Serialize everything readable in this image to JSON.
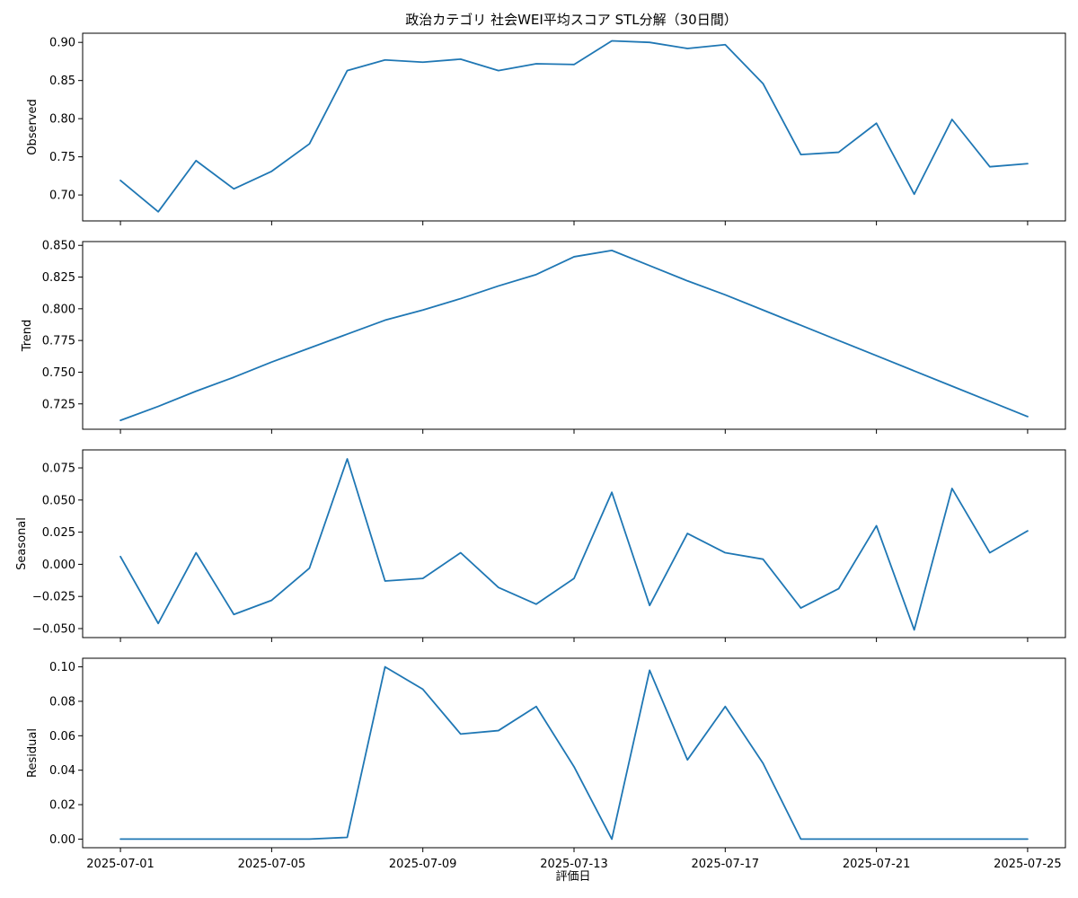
{
  "figure": {
    "title": "政治カテゴリ 社会WEI平均スコア STL分解（30日間）",
    "xlabel": "評価日"
  },
  "colors": {
    "line": "#1f77b4"
  },
  "chart_data": [
    {
      "type": "line",
      "name": "observed",
      "ylabel": "Observed",
      "x": [
        "2025-07-01",
        "2025-07-02",
        "2025-07-03",
        "2025-07-04",
        "2025-07-05",
        "2025-07-06",
        "2025-07-07",
        "2025-07-08",
        "2025-07-09",
        "2025-07-10",
        "2025-07-11",
        "2025-07-12",
        "2025-07-13",
        "2025-07-14",
        "2025-07-15",
        "2025-07-16",
        "2025-07-17",
        "2025-07-18",
        "2025-07-19",
        "2025-07-20",
        "2025-07-21",
        "2025-07-22",
        "2025-07-23",
        "2025-07-24",
        "2025-07-25"
      ],
      "values": [
        0.719,
        0.678,
        0.745,
        0.708,
        0.731,
        0.767,
        0.863,
        0.877,
        0.874,
        0.878,
        0.863,
        0.872,
        0.871,
        0.902,
        0.9,
        0.892,
        0.897,
        0.846,
        0.753,
        0.756,
        0.794,
        0.701,
        0.799,
        0.737,
        0.741
      ],
      "ylim": [
        0.666,
        0.912
      ],
      "yticks": [
        0.7,
        0.75,
        0.8,
        0.85,
        0.9
      ],
      "ytick_labels": [
        "0.70",
        "0.75",
        "0.80",
        "0.85",
        "0.90"
      ]
    },
    {
      "type": "line",
      "name": "trend",
      "ylabel": "Trend",
      "x": [
        "2025-07-01",
        "2025-07-02",
        "2025-07-03",
        "2025-07-04",
        "2025-07-05",
        "2025-07-06",
        "2025-07-07",
        "2025-07-08",
        "2025-07-09",
        "2025-07-10",
        "2025-07-11",
        "2025-07-12",
        "2025-07-13",
        "2025-07-14",
        "2025-07-15",
        "2025-07-16",
        "2025-07-17",
        "2025-07-18",
        "2025-07-19",
        "2025-07-20",
        "2025-07-21",
        "2025-07-22",
        "2025-07-23",
        "2025-07-24",
        "2025-07-25"
      ],
      "values": [
        0.712,
        0.723,
        0.735,
        0.746,
        0.758,
        0.769,
        0.78,
        0.791,
        0.799,
        0.808,
        0.818,
        0.827,
        0.841,
        0.846,
        0.834,
        0.822,
        0.811,
        0.799,
        0.787,
        0.775,
        0.763,
        0.751,
        0.739,
        0.727,
        0.715
      ],
      "ylim": [
        0.705,
        0.853
      ],
      "yticks": [
        0.725,
        0.75,
        0.775,
        0.8,
        0.825,
        0.85
      ],
      "ytick_labels": [
        "0.725",
        "0.750",
        "0.775",
        "0.800",
        "0.825",
        "0.850"
      ]
    },
    {
      "type": "line",
      "name": "seasonal",
      "ylabel": "Seasonal",
      "x": [
        "2025-07-01",
        "2025-07-02",
        "2025-07-03",
        "2025-07-04",
        "2025-07-05",
        "2025-07-06",
        "2025-07-07",
        "2025-07-08",
        "2025-07-09",
        "2025-07-10",
        "2025-07-11",
        "2025-07-12",
        "2025-07-13",
        "2025-07-14",
        "2025-07-15",
        "2025-07-16",
        "2025-07-17",
        "2025-07-18",
        "2025-07-19",
        "2025-07-20",
        "2025-07-21",
        "2025-07-22",
        "2025-07-23",
        "2025-07-24",
        "2025-07-25"
      ],
      "values": [
        0.006,
        -0.046,
        0.009,
        -0.039,
        -0.028,
        -0.003,
        0.082,
        -0.013,
        -0.011,
        0.009,
        -0.018,
        -0.031,
        -0.011,
        0.056,
        -0.032,
        0.024,
        0.009,
        0.004,
        -0.034,
        -0.019,
        0.03,
        -0.051,
        0.059,
        0.009,
        0.026
      ],
      "ylim": [
        -0.057,
        0.089
      ],
      "yticks": [
        -0.05,
        -0.025,
        0.0,
        0.025,
        0.05,
        0.075
      ],
      "ytick_labels": [
        "−0.050",
        "−0.025",
        "0.000",
        "0.025",
        "0.050",
        "0.075"
      ]
    },
    {
      "type": "line",
      "name": "residual",
      "ylabel": "Residual",
      "x": [
        "2025-07-01",
        "2025-07-02",
        "2025-07-03",
        "2025-07-04",
        "2025-07-05",
        "2025-07-06",
        "2025-07-07",
        "2025-07-08",
        "2025-07-09",
        "2025-07-10",
        "2025-07-11",
        "2025-07-12",
        "2025-07-13",
        "2025-07-14",
        "2025-07-15",
        "2025-07-16",
        "2025-07-17",
        "2025-07-18",
        "2025-07-19",
        "2025-07-20",
        "2025-07-21",
        "2025-07-22",
        "2025-07-23",
        "2025-07-24",
        "2025-07-25"
      ],
      "values": [
        0.0,
        0.0,
        0.0,
        0.0,
        0.0,
        0.0,
        0.001,
        0.1,
        0.087,
        0.061,
        0.063,
        0.077,
        0.042,
        0.0,
        0.098,
        0.046,
        0.077,
        0.044,
        0.0,
        0.0,
        0.0,
        0.0,
        0.0,
        0.0,
        0.0
      ],
      "ylim": [
        -0.005,
        0.105
      ],
      "yticks": [
        0.0,
        0.02,
        0.04,
        0.06,
        0.08,
        0.1
      ],
      "ytick_labels": [
        "0.00",
        "0.02",
        "0.04",
        "0.06",
        "0.08",
        "0.10"
      ]
    }
  ],
  "x_axis": {
    "tick_dates": [
      "2025-07-01",
      "2025-07-05",
      "2025-07-09",
      "2025-07-13",
      "2025-07-17",
      "2025-07-21",
      "2025-07-25"
    ],
    "tick_labels": [
      "2025-07-01",
      "2025-07-05",
      "2025-07-09",
      "2025-07-13",
      "2025-07-17",
      "2025-07-21",
      "2025-07-25"
    ]
  }
}
